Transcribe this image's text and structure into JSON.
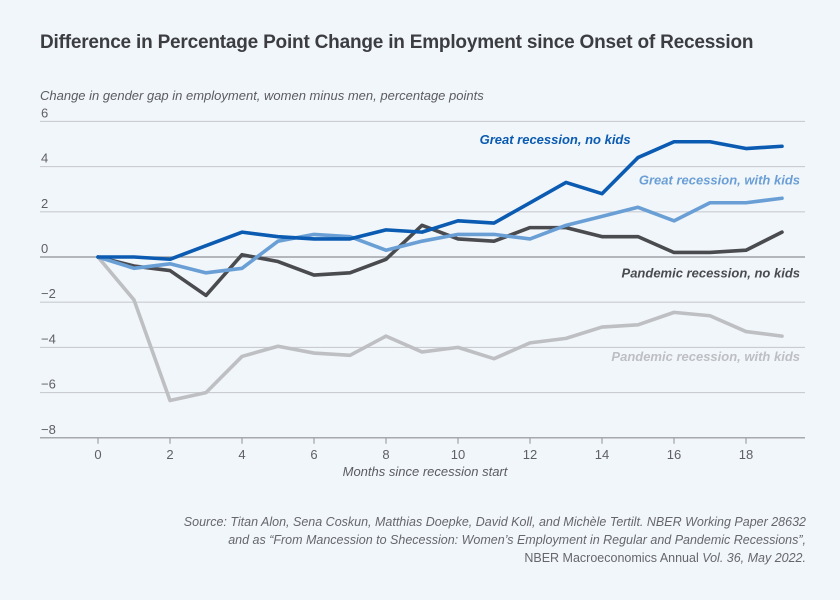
{
  "chart_data": {
    "type": "line",
    "title": "Difference in Percentage Point Change in Employment since Onset of Recession",
    "ylabel": "Change in gender gap in employment, women minus men, percentage points",
    "xlabel": "Months since recession start",
    "x": [
      0,
      1,
      2,
      3,
      4,
      5,
      6,
      7,
      8,
      9,
      10,
      11,
      12,
      13,
      14,
      15,
      16,
      17,
      18,
      19
    ],
    "xlim": [
      -1.8,
      20.2
    ],
    "ylim": [
      -8,
      6
    ],
    "xticks": [
      0,
      2,
      4,
      6,
      8,
      10,
      12,
      14,
      16,
      18
    ],
    "yticks": [
      6,
      4,
      2,
      0,
      -2,
      -4,
      -6,
      -8
    ],
    "ytick_labels": [
      "6",
      "4",
      "2",
      "0",
      "−2",
      "−4",
      "−6",
      "−8"
    ],
    "grid": true,
    "series": [
      {
        "name": "Great recession, no kids",
        "color": "#0a5bb1",
        "values": [
          0,
          0,
          -0.1,
          0.5,
          1.1,
          0.9,
          0.8,
          0.8,
          1.2,
          1.1,
          1.6,
          1.5,
          2.4,
          3.3,
          2.8,
          4.4,
          5.1,
          5.1,
          4.8,
          4.9
        ]
      },
      {
        "name": "Great recession, with kids",
        "color": "#6a9fd6",
        "values": [
          0,
          -0.5,
          -0.3,
          -0.7,
          -0.5,
          0.7,
          1.0,
          0.9,
          0.3,
          0.7,
          1.0,
          1.0,
          0.8,
          1.4,
          1.8,
          2.2,
          1.6,
          2.4,
          2.4,
          2.6
        ]
      },
      {
        "name": "Pandemic recession, no kids",
        "color": "#4a4b4f",
        "values": [
          0,
          -0.4,
          -0.6,
          -1.7,
          0.1,
          -0.2,
          -0.8,
          -0.7,
          -0.1,
          1.4,
          0.8,
          0.7,
          1.3,
          1.3,
          0.9,
          0.9,
          0.2,
          0.2,
          0.3,
          1.1
        ]
      },
      {
        "name": "Pandemic recession, with kids",
        "color": "#bebfc2",
        "values": [
          0,
          -1.9,
          -6.35,
          -6.0,
          -4.4,
          -3.95,
          -4.25,
          -4.35,
          -3.5,
          -4.2,
          -4.0,
          -4.5,
          -3.8,
          -3.6,
          -3.1,
          -3.0,
          -2.45,
          -2.6,
          -3.3,
          -3.5
        ]
      }
    ],
    "annotations": [
      {
        "text": "Great recession, no kids",
        "series": 0,
        "x": 10.6,
        "y": 5.0,
        "anchor": "start"
      },
      {
        "text": "Great recession, with kids",
        "series": 1,
        "x": 19.5,
        "y": 3.2,
        "anchor": "end"
      },
      {
        "text": "Pandemic recession, no kids",
        "series": 2,
        "x": 19.5,
        "y": -0.9,
        "anchor": "end"
      },
      {
        "text": "Pandemic recession, with kids",
        "series": 3,
        "x": 19.5,
        "y": -4.6,
        "anchor": "end"
      }
    ]
  },
  "source": {
    "line1": "Source: Titan Alon, Sena Coskun, Matthias Doepke, David Koll, and Michèle Tertilt. NBER Working Paper 28632",
    "line2": "and as “From Mancession to Shecession: Women’s Employment in Regular and Pandemic Recessions”,",
    "line3_regular": "NBER Macroeconomics Annual ",
    "line3_italic": "Vol. 36, May 2022."
  }
}
